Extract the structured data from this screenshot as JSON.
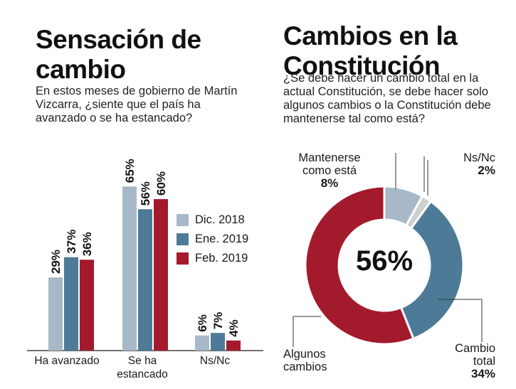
{
  "left": {
    "title": "Sensación de cambio",
    "subtitle": "En estos meses de gobierno de Martín Vizcarra, ¿siente que el país ha avanzado o se ha estancado?"
  },
  "right": {
    "title": "Cambios en la Constitución",
    "subtitle": "¿Se debe hacer un cambio total en la actual Constitución, se debe hacer solo algunos cambios o la Constitución debe mantenerse tal como está?"
  },
  "colors": {
    "dic2018": "#a7b9c8",
    "ene2019": "#4d7b97",
    "feb2019": "#a31a2d",
    "ns_pie": "#cfcfcf"
  },
  "chart_data": [
    {
      "type": "bar",
      "title": "Sensación de cambio",
      "categories": [
        "Ha avanzado",
        "Se ha estancado",
        "Ns/Nc"
      ],
      "series": [
        {
          "name": "Dic. 2018",
          "values": [
            29,
            65,
            6
          ],
          "labels": [
            "29%",
            "65%",
            "6%"
          ]
        },
        {
          "name": "Ene. 2019",
          "values": [
            37,
            56,
            7
          ],
          "labels": [
            "37%",
            "56%",
            "7%"
          ]
        },
        {
          "name": "Feb. 2019",
          "values": [
            36,
            60,
            4
          ],
          "labels": [
            "36%",
            "60%",
            "4%"
          ]
        }
      ],
      "ylim": [
        0,
        70
      ],
      "legend": "right"
    },
    {
      "type": "pie",
      "title": "Cambios en la Constitución",
      "center_label": "56%",
      "slices": [
        {
          "name": "Mantenerse como está",
          "value": 8,
          "label": "8%"
        },
        {
          "name": "Ns/Nc",
          "value": 2,
          "label": "2%"
        },
        {
          "name": "Cambio total",
          "value": 34,
          "label": "34%"
        },
        {
          "name": "Algunos cambios",
          "value": 56,
          "label": "56%"
        }
      ]
    }
  ]
}
